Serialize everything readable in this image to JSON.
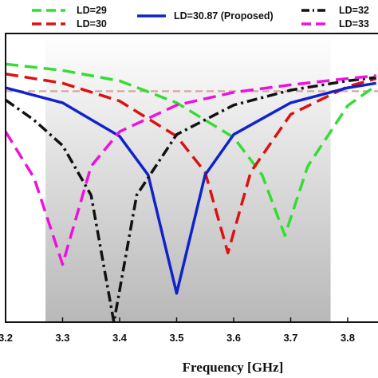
{
  "chart_data": {
    "type": "line",
    "xlabel": "Frequency [GHz]",
    "ylabel": "",
    "xlim": [
      3.2,
      3.85
    ],
    "ylim": [
      -50,
      0
    ],
    "x_ticks": [
      "3.2",
      "3.3",
      "3.4",
      "3.5",
      "3.6",
      "3.7",
      "3.8"
    ],
    "grid": false,
    "legend_position": "top",
    "shaded_band": {
      "x": [
        3.27,
        3.77
      ],
      "color_top": "#ffffff",
      "color_bottom": "#b8b8b8"
    },
    "reference_line": {
      "y": -10,
      "color": "#d4a5a5",
      "style": "dashed"
    },
    "series": [
      {
        "name": "LD=29",
        "color": "#33dd33",
        "style": "dashed",
        "resonance_ghz": 3.69,
        "min_db": -35,
        "x": [
          3.2,
          3.3,
          3.4,
          3.5,
          3.6,
          3.65,
          3.69,
          3.73,
          3.8,
          3.85
        ],
        "y": [
          -5.3,
          -6.4,
          -8.2,
          -12,
          -18,
          -24.5,
          -35,
          -23,
          -12.5,
          -9
        ]
      },
      {
        "name": "LD=30",
        "color": "#dd1111",
        "style": "dashed",
        "resonance_ghz": 3.59,
        "min_db": -38,
        "x": [
          3.2,
          3.3,
          3.4,
          3.5,
          3.55,
          3.59,
          3.63,
          3.7,
          3.8,
          3.85
        ],
        "y": [
          -7,
          -8.6,
          -11.7,
          -17.8,
          -24,
          -38,
          -24,
          -14,
          -9.2,
          -7.8
        ]
      },
      {
        "name": "LD=30.87 (Proposed)",
        "color": "#1122cc",
        "style": "solid",
        "resonance_ghz": 3.5,
        "min_db": -45,
        "x": [
          3.2,
          3.3,
          3.4,
          3.45,
          3.5,
          3.55,
          3.6,
          3.7,
          3.8,
          3.85
        ],
        "y": [
          -9.4,
          -12,
          -17.8,
          -24.5,
          -45,
          -24.5,
          -17.5,
          -12,
          -9.4,
          -8.6
        ]
      },
      {
        "name": "LD=32",
        "color": "#111111",
        "style": "dashdot",
        "resonance_ghz": 3.39,
        "min_db": -50,
        "x": [
          3.2,
          3.25,
          3.3,
          3.35,
          3.39,
          3.43,
          3.5,
          3.6,
          3.7,
          3.8,
          3.85
        ],
        "y": [
          -11.5,
          -15,
          -19.4,
          -28,
          -50,
          -28,
          -17.5,
          -12.4,
          -9.8,
          -8.2,
          -7.6
        ]
      },
      {
        "name": "LD=33",
        "color": "#ee11dd",
        "style": "dashed",
        "resonance_ghz": 3.3,
        "min_db": -40,
        "x": [
          3.2,
          3.25,
          3.3,
          3.35,
          3.4,
          3.5,
          3.6,
          3.7,
          3.8,
          3.85
        ],
        "y": [
          -17,
          -25,
          -40,
          -23,
          -17,
          -12.4,
          -10.2,
          -8.9,
          -7.8,
          -7.3
        ]
      }
    ]
  }
}
